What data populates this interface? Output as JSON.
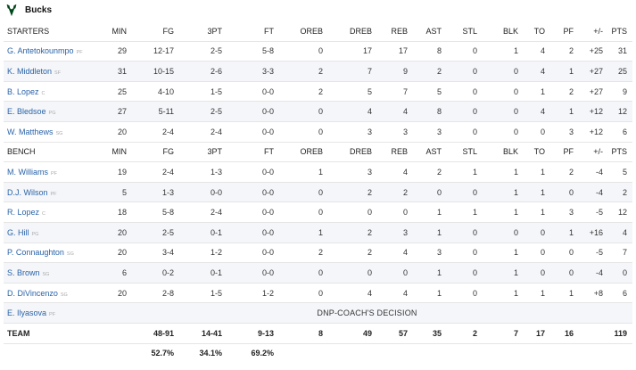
{
  "team": {
    "name": "Bucks",
    "logo_icon": "bucks-deer-logo-icon",
    "accent": "#00471b"
  },
  "columns": [
    "MIN",
    "FG",
    "3PT",
    "FT",
    "OREB",
    "DREB",
    "REB",
    "AST",
    "STL",
    "BLK",
    "TO",
    "PF",
    "+/-",
    "PTS"
  ],
  "starters": {
    "label": "STARTERS",
    "players": [
      {
        "name": "G. Antetokounmpo",
        "pos": "PF",
        "stats": [
          "29",
          "12-17",
          "2-5",
          "5-8",
          "0",
          "17",
          "17",
          "8",
          "0",
          "1",
          "4",
          "2",
          "+25",
          "31"
        ]
      },
      {
        "name": "K. Middleton",
        "pos": "SF",
        "stats": [
          "31",
          "10-15",
          "2-6",
          "3-3",
          "2",
          "7",
          "9",
          "2",
          "0",
          "0",
          "4",
          "1",
          "+27",
          "25"
        ]
      },
      {
        "name": "B. Lopez",
        "pos": "C",
        "stats": [
          "25",
          "4-10",
          "1-5",
          "0-0",
          "2",
          "5",
          "7",
          "5",
          "0",
          "0",
          "1",
          "2",
          "+27",
          "9"
        ]
      },
      {
        "name": "E. Bledsoe",
        "pos": "PG",
        "stats": [
          "27",
          "5-11",
          "2-5",
          "0-0",
          "0",
          "4",
          "4",
          "8",
          "0",
          "0",
          "4",
          "1",
          "+12",
          "12"
        ]
      },
      {
        "name": "W. Matthews",
        "pos": "SG",
        "stats": [
          "20",
          "2-4",
          "2-4",
          "0-0",
          "0",
          "3",
          "3",
          "3",
          "0",
          "0",
          "0",
          "3",
          "+12",
          "6"
        ]
      }
    ]
  },
  "bench": {
    "label": "BENCH",
    "players": [
      {
        "name": "M. Williams",
        "pos": "PF",
        "stats": [
          "19",
          "2-4",
          "1-3",
          "0-0",
          "1",
          "3",
          "4",
          "2",
          "1",
          "1",
          "1",
          "2",
          "-4",
          "5"
        ]
      },
      {
        "name": "D.J. Wilson",
        "pos": "PF",
        "stats": [
          "5",
          "1-3",
          "0-0",
          "0-0",
          "0",
          "2",
          "2",
          "0",
          "0",
          "1",
          "1",
          "0",
          "-4",
          "2"
        ]
      },
      {
        "name": "R. Lopez",
        "pos": "C",
        "stats": [
          "18",
          "5-8",
          "2-4",
          "0-0",
          "0",
          "0",
          "0",
          "1",
          "1",
          "1",
          "1",
          "3",
          "-5",
          "12"
        ]
      },
      {
        "name": "G. Hill",
        "pos": "PG",
        "stats": [
          "20",
          "2-5",
          "0-1",
          "0-0",
          "1",
          "2",
          "3",
          "1",
          "0",
          "0",
          "0",
          "1",
          "+16",
          "4"
        ]
      },
      {
        "name": "P. Connaughton",
        "pos": "SG",
        "stats": [
          "20",
          "3-4",
          "1-2",
          "0-0",
          "2",
          "2",
          "4",
          "3",
          "0",
          "1",
          "0",
          "0",
          "-5",
          "7"
        ]
      },
      {
        "name": "S. Brown",
        "pos": "SG",
        "stats": [
          "6",
          "0-2",
          "0-1",
          "0-0",
          "0",
          "0",
          "0",
          "1",
          "0",
          "1",
          "0",
          "0",
          "-4",
          "0"
        ]
      },
      {
        "name": "D. DiVincenzo",
        "pos": "SG",
        "stats": [
          "20",
          "2-8",
          "1-5",
          "1-2",
          "0",
          "4",
          "4",
          "1",
          "0",
          "1",
          "1",
          "1",
          "+8",
          "6"
        ]
      }
    ],
    "dnp": {
      "name": "E. Ilyasova",
      "pos": "PF",
      "reason": "DNP-COACH'S DECISION"
    }
  },
  "totals": {
    "label": "TEAM",
    "stats": [
      "",
      "48-91",
      "14-41",
      "9-13",
      "8",
      "49",
      "57",
      "35",
      "2",
      "7",
      "17",
      "16",
      "",
      "119"
    ],
    "percentages": [
      "",
      "52.7%",
      "34.1%",
      "69.2%",
      "",
      "",
      "",
      "",
      "",
      "",
      "",
      "",
      "",
      ""
    ]
  }
}
